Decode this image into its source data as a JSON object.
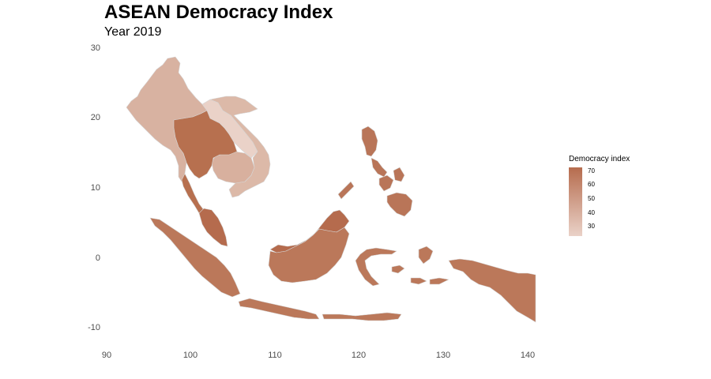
{
  "title": "ASEAN Democracy Index",
  "subtitle": "Year 2019",
  "axes": {
    "x_ticks": [
      "90",
      "100",
      "110",
      "120",
      "130",
      "140"
    ],
    "y_ticks": [
      "30",
      "20",
      "10",
      "0",
      "-10"
    ],
    "x_range": [
      90,
      141
    ],
    "y_range": [
      -11,
      30
    ]
  },
  "legend": {
    "title": "Democracy index",
    "labels": [
      "70",
      "60",
      "50",
      "40",
      "30"
    ],
    "low_color": "#ead2c8",
    "high_color": "#b66c4e"
  },
  "countries": [
    {
      "name": "Myanmar",
      "color": "#d8b2a1"
    },
    {
      "name": "Thailand",
      "color": "#b7704f"
    },
    {
      "name": "Laos",
      "color": "#ead2c8"
    },
    {
      "name": "Vietnam",
      "color": "#dcb9a8"
    },
    {
      "name": "Cambodia",
      "color": "#d8b09e"
    },
    {
      "name": "Malaysia",
      "color": "#b56b4d"
    },
    {
      "name": "Philippines",
      "color": "#b97558"
    },
    {
      "name": "Indonesia",
      "color": "#bb785a"
    }
  ],
  "colors": {
    "background": "#ffffff",
    "border": "#d6d6d6"
  }
}
